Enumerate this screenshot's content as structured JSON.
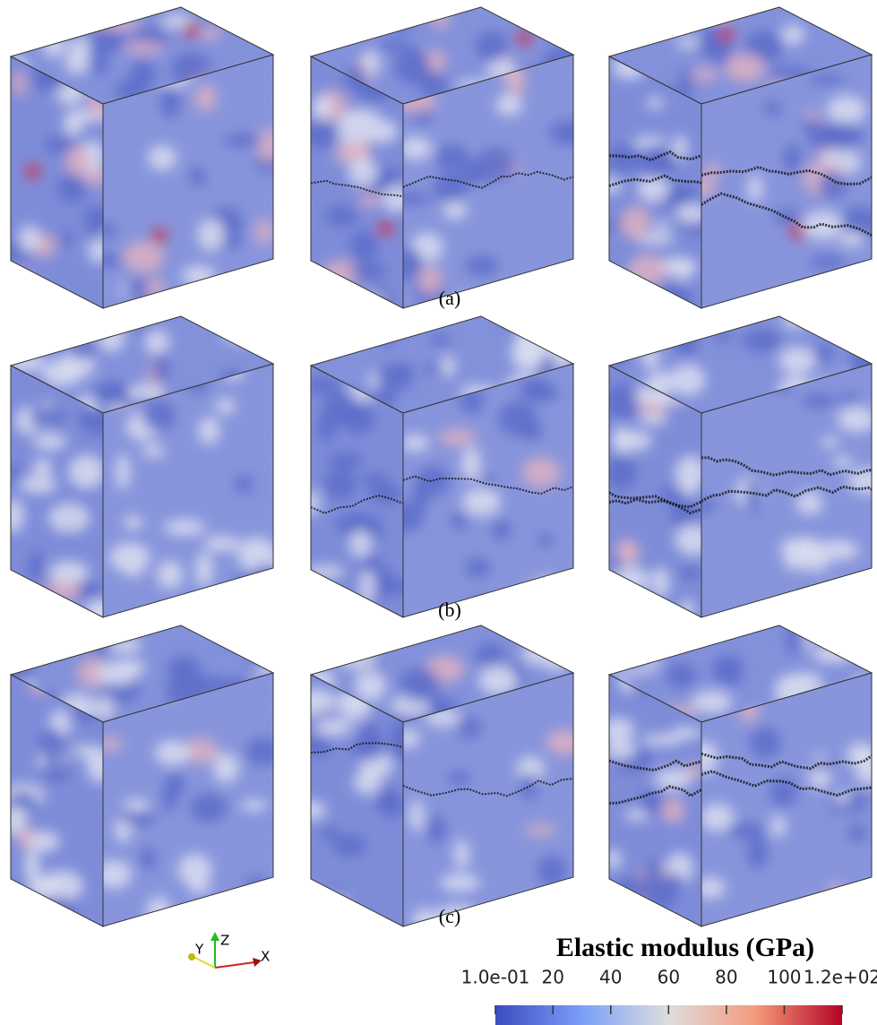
{
  "panels": [
    {
      "label": "(a)"
    },
    {
      "label": "(b)"
    },
    {
      "label": "(c)"
    }
  ],
  "colorbar": {
    "title": "Elastic modulus (GPa)",
    "range": [
      0.1,
      120
    ],
    "ticks": [
      {
        "value": 0.1,
        "label": "1.0e-01"
      },
      20,
      40,
      60,
      80,
      100,
      {
        "value": 120,
        "label": "1.2e+02"
      }
    ]
  },
  "axes_triad": {
    "z": "Z",
    "y": "Y",
    "x": "X"
  }
}
